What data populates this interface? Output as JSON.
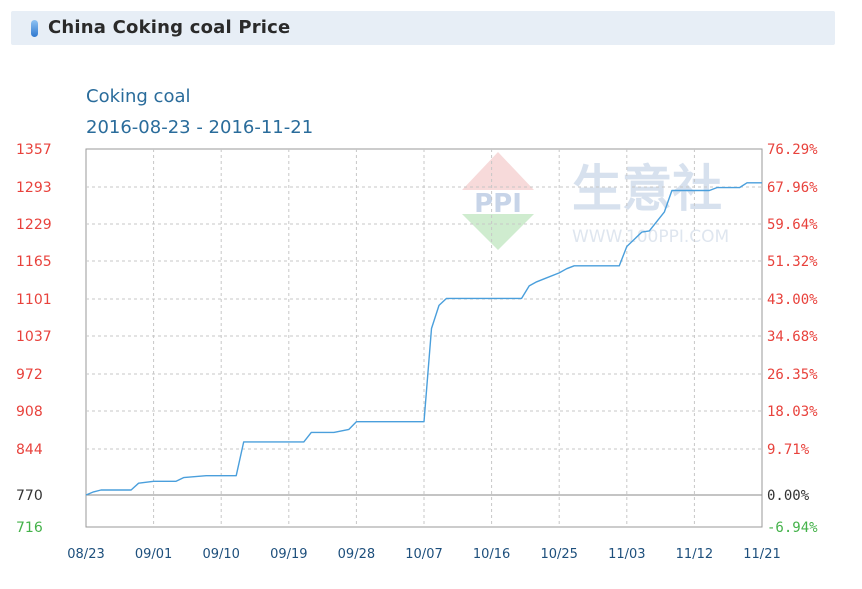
{
  "header": {
    "title": "China Coking coal Price"
  },
  "watermark": {
    "logo_text": "PPI",
    "brand": "生意社",
    "url": "WWW.100PPI.COM"
  },
  "colors": {
    "line": "#4a9fdc",
    "left_up": "#e8423c",
    "left_base": "#333333",
    "left_down": "#44b24a",
    "right_up": "#e8423c",
    "right_down": "#44b24a",
    "x_axis": "#1d4f7c",
    "grid": "#c7c7c7"
  },
  "chart_data": {
    "type": "line",
    "title": "Coking coal",
    "subtitle": "2016-08-23 - 2016-11-21",
    "x_start": "2016-08-23",
    "x_end": "2016-11-21",
    "base_value": 770,
    "ylim": [
      716,
      1357
    ],
    "y_ticks_left": [
      "1357",
      "1293",
      "1229",
      "1165",
      "1101",
      "1037",
      "972",
      "908",
      "844",
      "770",
      "716"
    ],
    "y_ticks_right": [
      "76.29%",
      "67.96%",
      "59.64%",
      "51.32%",
      "43.00%",
      "34.68%",
      "26.35%",
      "18.03%",
      "9.71%",
      "0.00%",
      "-6.94%"
    ],
    "x_ticks": [
      "08/23",
      "09/01",
      "09/10",
      "09/19",
      "09/28",
      "10/07",
      "10/16",
      "10/25",
      "11/03",
      "11/12",
      "11/21"
    ],
    "grid": true,
    "series": [
      {
        "x": [
          "2016-08-23",
          "2016-08-24",
          "2016-08-25",
          "2016-08-29",
          "2016-08-30",
          "2016-09-01",
          "2016-09-04",
          "2016-09-05",
          "2016-09-08",
          "2016-09-12",
          "2016-09-13",
          "2016-09-21",
          "2016-09-22",
          "2016-09-25",
          "2016-09-27",
          "2016-09-28",
          "2016-10-07",
          "2016-10-08",
          "2016-10-09",
          "2016-10-10",
          "2016-10-20",
          "2016-10-21",
          "2016-10-22",
          "2016-10-23",
          "2016-10-25",
          "2016-10-26",
          "2016-10-27",
          "2016-11-02",
          "2016-11-03",
          "2016-11-05",
          "2016-11-06",
          "2016-11-08",
          "2016-11-09",
          "2016-11-14",
          "2016-11-15",
          "2016-11-18",
          "2016-11-19",
          "2016-11-21"
        ],
        "values": [
          770,
          775,
          778,
          778,
          789,
          792,
          792,
          798,
          801,
          801,
          856,
          856,
          872,
          872,
          877,
          890,
          890,
          1050,
          1090,
          1102,
          1102,
          1123,
          1130,
          1135,
          1145,
          1152,
          1157,
          1157,
          1190,
          1215,
          1217,
          1250,
          1287,
          1287,
          1292,
          1292,
          1300,
          1300
        ]
      }
    ]
  }
}
